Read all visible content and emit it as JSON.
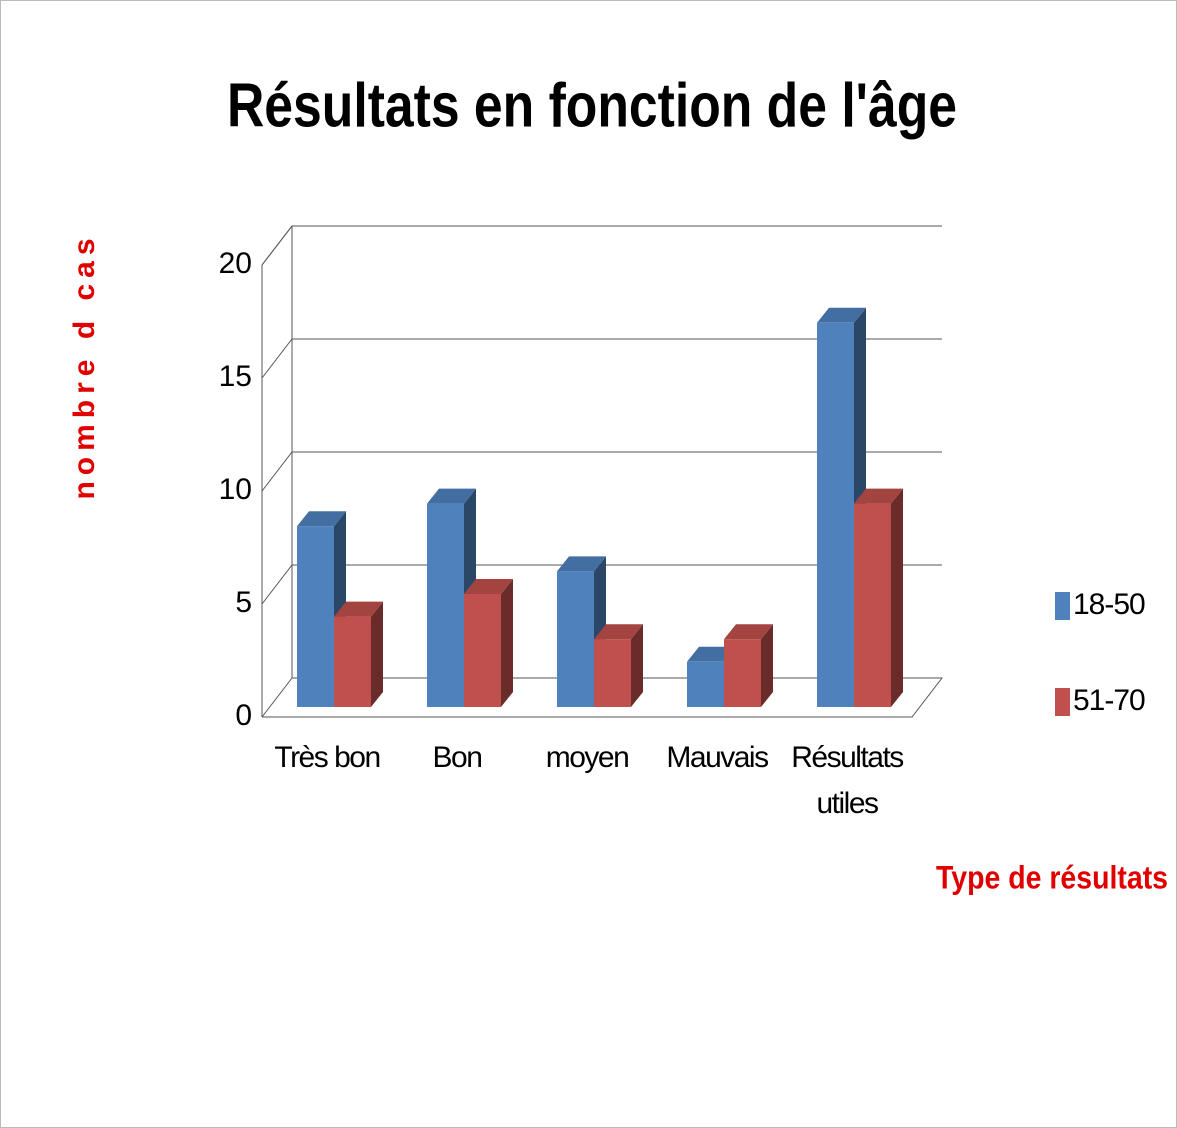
{
  "chart_data": {
    "type": "bar3d",
    "title": "Résultats en fonction de l'âge",
    "y_label": "nombre d cas",
    "x_label": "Type de résultats",
    "categories": [
      "Très bon",
      "Bon",
      "moyen",
      "Mauvais",
      "Résultats utiles"
    ],
    "series": [
      {
        "name": "18-50",
        "color": "#4f81bd",
        "values": [
          8,
          9,
          6,
          2,
          17
        ]
      },
      {
        "name": "51-70",
        "color": "#c0504d",
        "values": [
          4,
          5,
          3,
          3,
          9
        ]
      }
    ],
    "ylim": [
      0,
      20
    ],
    "yticks": [
      0,
      5,
      10,
      15,
      20
    ],
    "grid": true,
    "legend": "right"
  }
}
